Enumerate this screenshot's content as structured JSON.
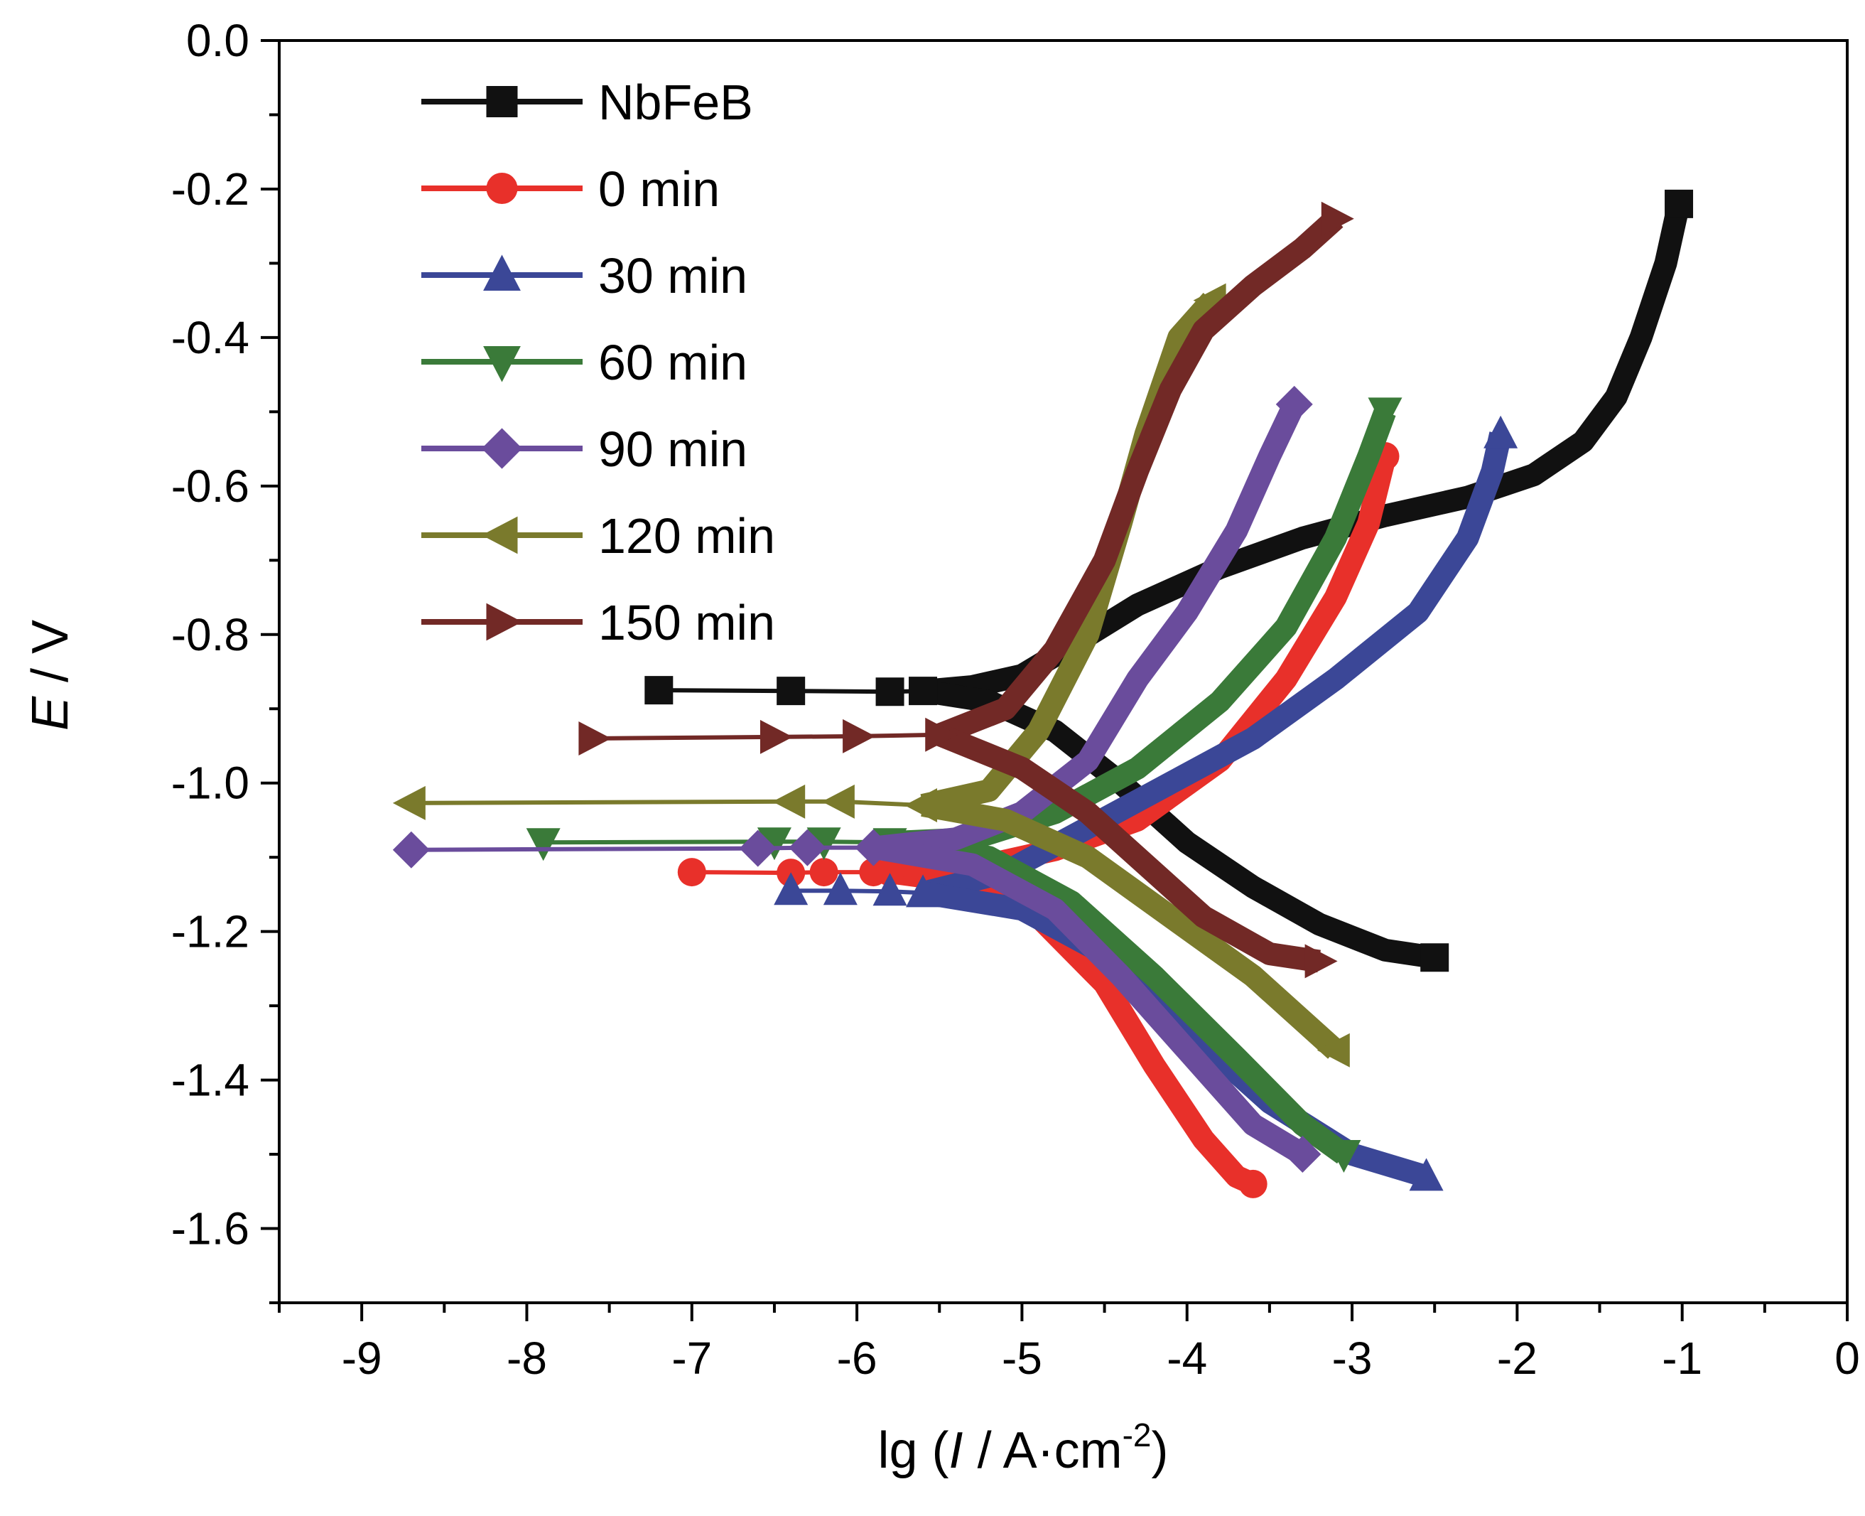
{
  "chart_data": {
    "type": "line",
    "xlabel": {
      "prefix": "lg (",
      "italic": "I",
      "middle": " / A·cm",
      "sup": "-2",
      "suffix": ")"
    },
    "ylabel": {
      "italic": "E",
      "suffix": " / V"
    },
    "xlim": [
      -9.5,
      0
    ],
    "ylim": [
      -1.7,
      0.0
    ],
    "x_ticks": [
      -9,
      -8,
      -7,
      -6,
      -5,
      -4,
      -3,
      -2,
      -1,
      0
    ],
    "x_tick_labels": [
      "-9",
      "-8",
      "-7",
      "-6",
      "-5",
      "-4",
      "-3",
      "-2",
      "-1",
      "0"
    ],
    "y_ticks": [
      0.0,
      -0.2,
      -0.4,
      -0.6,
      -0.8,
      -1.0,
      -1.2,
      -1.4,
      -1.6
    ],
    "y_tick_labels": [
      "0.0",
      "-0.2",
      "-0.4",
      "-0.6",
      "-0.8",
      "-1.0",
      "-1.2",
      "-1.4",
      "-1.6"
    ],
    "grid": false,
    "legend_position": "top-left",
    "series": [
      {
        "name": "NbFeB",
        "color": "#111111",
        "marker": "square",
        "ecorr": -0.875,
        "left": [
          [
            -7.2,
            -0.875
          ],
          [
            -6.4,
            -0.876
          ],
          [
            -5.8,
            -0.877
          ],
          [
            -5.6,
            -0.876
          ]
        ],
        "anodic": [
          [
            -5.6,
            -0.876
          ],
          [
            -5.3,
            -0.87
          ],
          [
            -5.0,
            -0.855
          ],
          [
            -4.7,
            -0.815
          ],
          [
            -4.3,
            -0.76
          ],
          [
            -3.8,
            -0.71
          ],
          [
            -3.3,
            -0.67
          ],
          [
            -2.8,
            -0.64
          ],
          [
            -2.3,
            -0.615
          ],
          [
            -1.9,
            -0.585
          ],
          [
            -1.6,
            -0.54
          ],
          [
            -1.4,
            -0.48
          ],
          [
            -1.25,
            -0.4
          ],
          [
            -1.1,
            -0.3
          ],
          [
            -1.02,
            -0.22
          ]
        ],
        "cathodic": [
          [
            -5.6,
            -0.876
          ],
          [
            -5.2,
            -0.89
          ],
          [
            -4.8,
            -0.93
          ],
          [
            -4.4,
            -1.0
          ],
          [
            -4.0,
            -1.08
          ],
          [
            -3.6,
            -1.14
          ],
          [
            -3.2,
            -1.19
          ],
          [
            -2.8,
            -1.225
          ],
          [
            -2.5,
            -1.235
          ]
        ]
      },
      {
        "name": "0 min",
        "color": "#e8302a",
        "marker": "circle",
        "ecorr": -1.12,
        "left": [
          [
            -7.0,
            -1.12
          ],
          [
            -6.4,
            -1.121
          ],
          [
            -6.2,
            -1.12
          ],
          [
            -5.9,
            -1.12
          ],
          [
            -5.8,
            -1.12
          ]
        ],
        "anodic": [
          [
            -5.8,
            -1.12
          ],
          [
            -5.3,
            -1.115
          ],
          [
            -4.8,
            -1.09
          ],
          [
            -4.3,
            -1.05
          ],
          [
            -3.8,
            -0.97
          ],
          [
            -3.4,
            -0.86
          ],
          [
            -3.1,
            -0.75
          ],
          [
            -2.9,
            -0.65
          ],
          [
            -2.8,
            -0.56
          ]
        ],
        "cathodic": [
          [
            -5.8,
            -1.12
          ],
          [
            -5.3,
            -1.135
          ],
          [
            -4.9,
            -1.18
          ],
          [
            -4.5,
            -1.27
          ],
          [
            -4.2,
            -1.38
          ],
          [
            -3.9,
            -1.48
          ],
          [
            -3.7,
            -1.53
          ],
          [
            -3.6,
            -1.54
          ]
        ]
      },
      {
        "name": "30 min",
        "color": "#3b4797",
        "marker": "triangle-up",
        "ecorr": -1.15,
        "left": [
          [
            -6.4,
            -1.145
          ],
          [
            -6.1,
            -1.145
          ],
          [
            -5.8,
            -1.146
          ],
          [
            -5.6,
            -1.148
          ]
        ],
        "anodic": [
          [
            -5.6,
            -1.148
          ],
          [
            -5.1,
            -1.12
          ],
          [
            -4.6,
            -1.06
          ],
          [
            -4.1,
            -1.0
          ],
          [
            -3.6,
            -0.94
          ],
          [
            -3.1,
            -0.86
          ],
          [
            -2.6,
            -0.77
          ],
          [
            -2.3,
            -0.67
          ],
          [
            -2.15,
            -0.58
          ],
          [
            -2.1,
            -0.53
          ]
        ],
        "cathodic": [
          [
            -5.6,
            -1.148
          ],
          [
            -5.0,
            -1.17
          ],
          [
            -4.5,
            -1.23
          ],
          [
            -4.0,
            -1.33
          ],
          [
            -3.5,
            -1.43
          ],
          [
            -3.0,
            -1.5
          ],
          [
            -2.55,
            -1.53
          ]
        ]
      },
      {
        "name": "60 min",
        "color": "#3a7a39",
        "marker": "triangle-down",
        "ecorr": -1.08,
        "left": [
          [
            -7.9,
            -1.08
          ],
          [
            -6.5,
            -1.079
          ],
          [
            -6.2,
            -1.079
          ],
          [
            -5.8,
            -1.08
          ]
        ],
        "anodic": [
          [
            -5.8,
            -1.08
          ],
          [
            -5.3,
            -1.075
          ],
          [
            -4.8,
            -1.04
          ],
          [
            -4.3,
            -0.98
          ],
          [
            -3.8,
            -0.89
          ],
          [
            -3.4,
            -0.79
          ],
          [
            -3.1,
            -0.67
          ],
          [
            -2.9,
            -0.56
          ],
          [
            -2.8,
            -0.5
          ]
        ],
        "cathodic": [
          [
            -5.8,
            -1.08
          ],
          [
            -5.2,
            -1.1
          ],
          [
            -4.7,
            -1.16
          ],
          [
            -4.2,
            -1.26
          ],
          [
            -3.7,
            -1.37
          ],
          [
            -3.3,
            -1.46
          ],
          [
            -3.05,
            -1.5
          ]
        ]
      },
      {
        "name": "90 min",
        "color": "#6a4c9c",
        "marker": "diamond",
        "ecorr": -1.09,
        "left": [
          [
            -8.7,
            -1.09
          ],
          [
            -6.6,
            -1.088
          ],
          [
            -6.3,
            -1.087
          ],
          [
            -5.9,
            -1.087
          ]
        ],
        "anodic": [
          [
            -5.9,
            -1.087
          ],
          [
            -5.4,
            -1.075
          ],
          [
            -5.0,
            -1.04
          ],
          [
            -4.6,
            -0.97
          ],
          [
            -4.3,
            -0.86
          ],
          [
            -4.0,
            -0.77
          ],
          [
            -3.7,
            -0.66
          ],
          [
            -3.5,
            -0.56
          ],
          [
            -3.35,
            -0.49
          ]
        ],
        "cathodic": [
          [
            -5.9,
            -1.087
          ],
          [
            -5.3,
            -1.11
          ],
          [
            -4.8,
            -1.17
          ],
          [
            -4.4,
            -1.26
          ],
          [
            -4.0,
            -1.36
          ],
          [
            -3.6,
            -1.46
          ],
          [
            -3.3,
            -1.5
          ]
        ]
      },
      {
        "name": "120 min",
        "color": "#7a7a2c",
        "marker": "triangle-left",
        "ecorr": -1.025,
        "left": [
          [
            -8.7,
            -1.027
          ],
          [
            -6.4,
            -1.025
          ],
          [
            -6.1,
            -1.025
          ],
          [
            -5.6,
            -1.03
          ]
        ],
        "anodic": [
          [
            -5.6,
            -1.03
          ],
          [
            -5.2,
            -1.01
          ],
          [
            -4.9,
            -0.93
          ],
          [
            -4.6,
            -0.8
          ],
          [
            -4.4,
            -0.65
          ],
          [
            -4.25,
            -0.53
          ],
          [
            -4.05,
            -0.4
          ],
          [
            -3.85,
            -0.35
          ]
        ],
        "cathodic": [
          [
            -5.6,
            -1.03
          ],
          [
            -5.1,
            -1.05
          ],
          [
            -4.6,
            -1.1
          ],
          [
            -4.1,
            -1.18
          ],
          [
            -3.6,
            -1.26
          ],
          [
            -3.3,
            -1.32
          ],
          [
            -3.1,
            -1.36
          ]
        ]
      },
      {
        "name": "150 min",
        "color": "#722926",
        "marker": "triangle-right",
        "ecorr": -0.94,
        "left": [
          [
            -7.6,
            -0.94
          ],
          [
            -6.5,
            -0.938
          ],
          [
            -6.0,
            -0.937
          ],
          [
            -5.5,
            -0.935
          ]
        ],
        "anodic": [
          [
            -5.5,
            -0.935
          ],
          [
            -5.1,
            -0.9
          ],
          [
            -4.8,
            -0.82
          ],
          [
            -4.5,
            -0.7
          ],
          [
            -4.3,
            -0.58
          ],
          [
            -4.1,
            -0.47
          ],
          [
            -3.9,
            -0.39
          ],
          [
            -3.6,
            -0.33
          ],
          [
            -3.3,
            -0.28
          ],
          [
            -3.1,
            -0.24
          ]
        ],
        "cathodic": [
          [
            -5.5,
            -0.935
          ],
          [
            -5.0,
            -0.98
          ],
          [
            -4.6,
            -1.04
          ],
          [
            -4.3,
            -1.1
          ],
          [
            -3.9,
            -1.18
          ],
          [
            -3.5,
            -1.23
          ],
          [
            -3.2,
            -1.24
          ]
        ]
      }
    ]
  }
}
